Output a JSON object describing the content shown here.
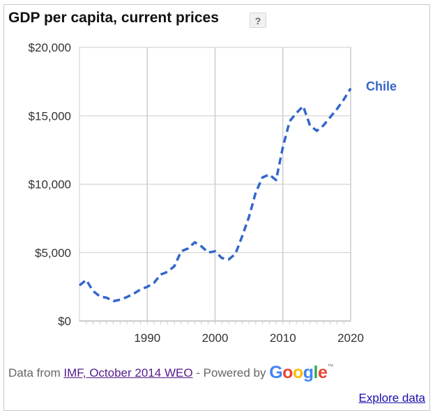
{
  "widget": {
    "title": "GDP per capita, current prices",
    "help_label": "?",
    "footer_prefix": "Data from",
    "source_link": "IMF, October 2014 WEO",
    "powered_by": "- Powered by",
    "logo_letters": [
      "G",
      "o",
      "o",
      "g",
      "l",
      "e"
    ],
    "logo_tm": "™",
    "explore_link": "Explore data",
    "accent_color": "#3366cc",
    "grid_color": "#cccccc"
  },
  "chart_data": {
    "type": "line",
    "title": "GDP per capita, current prices",
    "xlabel": "",
    "ylabel": "",
    "xlim": [
      1980,
      2020
    ],
    "ylim": [
      0,
      20000
    ],
    "x_ticks": [
      1990,
      2000,
      2010,
      2020
    ],
    "y_ticks": [
      0,
      5000,
      10000,
      15000,
      20000
    ],
    "y_tick_labels": [
      "$0",
      "$5,000",
      "$10,000",
      "$15,000",
      "$20,000"
    ],
    "grid": true,
    "line_style": "dashed",
    "series": [
      {
        "name": "Chile",
        "color": "#3366cc",
        "x": [
          1980,
          1981,
          1982,
          1983,
          1984,
          1985,
          1986,
          1987,
          1988,
          1989,
          1990,
          1991,
          1992,
          1993,
          1994,
          1995,
          1996,
          1997,
          1998,
          1999,
          2000,
          2001,
          2002,
          2003,
          2004,
          2005,
          2006,
          2007,
          2008,
          2009,
          2010,
          2011,
          2012,
          2013,
          2014,
          2015,
          2016,
          2017,
          2018,
          2019,
          2020
        ],
        "values": [
          2600,
          3000,
          2200,
          1800,
          1700,
          1450,
          1550,
          1750,
          2000,
          2300,
          2500,
          2800,
          3400,
          3600,
          4000,
          5100,
          5300,
          5750,
          5450,
          5000,
          5100,
          4600,
          4500,
          4900,
          6200,
          7600,
          9400,
          10500,
          10700,
          10300,
          12700,
          14600,
          15200,
          15700,
          14300,
          13900,
          14300,
          14900,
          15500,
          16200,
          17000
        ]
      }
    ]
  }
}
